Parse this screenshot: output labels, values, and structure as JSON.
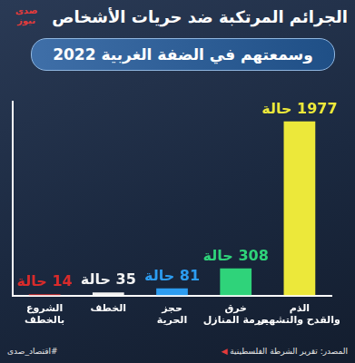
{
  "chart_data": {
    "type": "bar",
    "title": "الجرائم المرتكبة ضد حريات الأشخاص",
    "subtitle": "وسمعتهم في الضفة الغربية 2022",
    "categories": [
      "الشروع بالخطف",
      "الخطف",
      "حجز الحرية",
      "خرق حرمة المنازل",
      "الذم والقدح والتشهير"
    ],
    "values": [
      14,
      35,
      81,
      308,
      1977
    ],
    "value_labels": [
      "14 حالة",
      "35 حالة",
      "81 حالة",
      "308 حالة",
      "1977 حالة"
    ],
    "colors": [
      "#d92b2b",
      "#f2f2f2",
      "#2c9cf0",
      "#2fd37a",
      "#ece83a"
    ],
    "ylim": [
      0,
      2200
    ],
    "grid": false,
    "data_labels": true,
    "tick_labels": "x",
    "source": "المصدر: تقرير الشرطة الفلسطينية",
    "annotations": [
      "#اقتصاد_صدى"
    ],
    "logo": "صدى نيوز"
  }
}
